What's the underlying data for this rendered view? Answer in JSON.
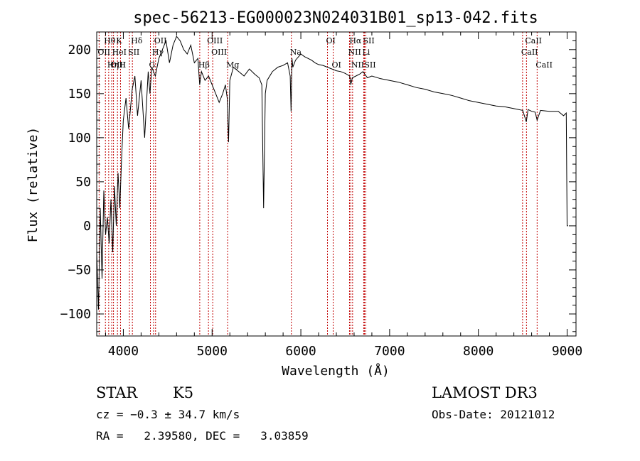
{
  "chart_data": {
    "type": "line",
    "title": "spec-56213-EG000023N024031B01_sp13-042.fits",
    "xlabel": "Wavelength (Å)",
    "ylabel": "Flux (relative)",
    "xlim": [
      3700,
      9100
    ],
    "ylim": [
      -125,
      220
    ],
    "xticks": [
      4000,
      5000,
      6000,
      7000,
      8000,
      9000
    ],
    "yticks": [
      -100,
      -50,
      0,
      50,
      100,
      150,
      200
    ],
    "xtick_labels": [
      "4000",
      "5000",
      "6000",
      "7000",
      "8000",
      "9000"
    ],
    "ytick_labels": [
      "−100",
      "−50",
      "0",
      "50",
      "100",
      "150",
      "200"
    ],
    "series": [
      {
        "x": [
          3700,
          3720,
          3740,
          3760,
          3780,
          3800,
          3820,
          3840,
          3860,
          3880,
          3900,
          3920,
          3940,
          3960,
          3980,
          4000,
          4030,
          4060,
          4100,
          4130,
          4160,
          4200,
          4240,
          4280,
          4300,
          4320,
          4360,
          4400,
          4440,
          4480,
          4520,
          4560,
          4600,
          4640,
          4680,
          4720,
          4760,
          4800,
          4840,
          4860,
          4880,
          4920,
          4960,
          5000,
          5040,
          5080,
          5120,
          5150,
          5170,
          5185,
          5200,
          5240,
          5300,
          5360,
          5420,
          5480,
          5530,
          5560,
          5580,
          5600,
          5620,
          5680,
          5740,
          5800,
          5850,
          5880,
          5890,
          5900,
          5910,
          5940,
          6000,
          6040,
          6080,
          6120,
          6160,
          6200,
          6250,
          6300,
          6350,
          6400,
          6450,
          6500,
          6550,
          6563,
          6580,
          6620,
          6660,
          6700,
          6750,
          6800,
          6900,
          7000,
          7100,
          7200,
          7300,
          7400,
          7500,
          7600,
          7700,
          7800,
          7900,
          8000,
          8100,
          8200,
          8300,
          8400,
          8500,
          8540,
          8560,
          8600,
          8640,
          8662,
          8700,
          8800,
          8900,
          8960,
          8990,
          9000,
          9010
        ],
        "y": [
          -30,
          -95,
          20,
          -60,
          40,
          -10,
          10,
          -20,
          30,
          -30,
          45,
          0,
          60,
          20,
          75,
          120,
          145,
          110,
          155,
          170,
          125,
          165,
          100,
          175,
          150,
          180,
          170,
          190,
          200,
          210,
          185,
          205,
          215,
          210,
          200,
          195,
          205,
          185,
          190,
          160,
          175,
          165,
          170,
          160,
          150,
          140,
          150,
          160,
          145,
          95,
          165,
          180,
          175,
          170,
          178,
          172,
          168,
          160,
          20,
          150,
          165,
          175,
          180,
          182,
          185,
          170,
          130,
          190,
          180,
          188,
          195,
          192,
          190,
          188,
          185,
          183,
          182,
          180,
          178,
          176,
          175,
          173,
          170,
          160,
          168,
          170,
          172,
          175,
          168,
          170,
          167,
          165,
          163,
          160,
          157,
          155,
          152,
          150,
          148,
          145,
          142,
          140,
          138,
          136,
          135,
          133,
          131,
          118,
          132,
          130,
          129,
          120,
          131,
          130,
          130,
          125,
          128,
          0,
          0
        ]
      }
    ],
    "spectral_lines": [
      {
        "label": "Hθ",
        "x": 3798,
        "row": 0
      },
      {
        "label": "K",
        "x": 3934,
        "row": 0
      },
      {
        "label": "Hδ",
        "x": 4102,
        "row": 0
      },
      {
        "label": "OII",
        "x": 3727,
        "row": 1
      },
      {
        "label": "HeI",
        "x": 3889,
        "row": 1
      },
      {
        "label": "SII",
        "x": 4069,
        "row": 1
      },
      {
        "label": "OIII",
        "x": 3869,
        "row": 2
      },
      {
        "label": "Hη",
        "x": 3835,
        "row": 2
      },
      {
        "label": "H",
        "x": 3968,
        "row": 2
      },
      {
        "label": "OII",
        "x": 4363,
        "row": 0
      },
      {
        "label": "Hγ",
        "x": 4340,
        "row": 1
      },
      {
        "label": "G",
        "x": 4305,
        "row": 2
      },
      {
        "label": "Hβ",
        "x": 4861,
        "row": 2
      },
      {
        "label": "OIII",
        "x": 4959,
        "row": 0
      },
      {
        "label": "OIII",
        "x": 5007,
        "row": 1
      },
      {
        "label": "Mg",
        "x": 5175,
        "row": 2
      },
      {
        "label": "Na",
        "x": 5893,
        "row": 1
      },
      {
        "label": "OI",
        "x": 6300,
        "row": 0
      },
      {
        "label": "OI",
        "x": 6364,
        "row": 2
      },
      {
        "label": "Hα",
        "x": 6563,
        "row": 0
      },
      {
        "label": "SII",
        "x": 6716,
        "row": 0
      },
      {
        "label": "NII",
        "x": 6548,
        "row": 1
      },
      {
        "label": "Li",
        "x": 6708,
        "row": 1
      },
      {
        "label": "NII",
        "x": 6583,
        "row": 2
      },
      {
        "label": "SII",
        "x": 6731,
        "row": 2
      },
      {
        "label": "CaII",
        "x": 8542,
        "row": 0
      },
      {
        "label": "CaII",
        "x": 8498,
        "row": 1
      },
      {
        "label": "CaII",
        "x": 8662,
        "row": 2
      }
    ]
  },
  "info": {
    "class": "STAR",
    "subclass": "K5",
    "survey": "LAMOST DR3",
    "cz": "cz = −0.3 ± 34.7 km/s",
    "obs_date": "Obs-Date: 20121012",
    "coords": "RA =   2.39580, DEC =   3.03859"
  }
}
